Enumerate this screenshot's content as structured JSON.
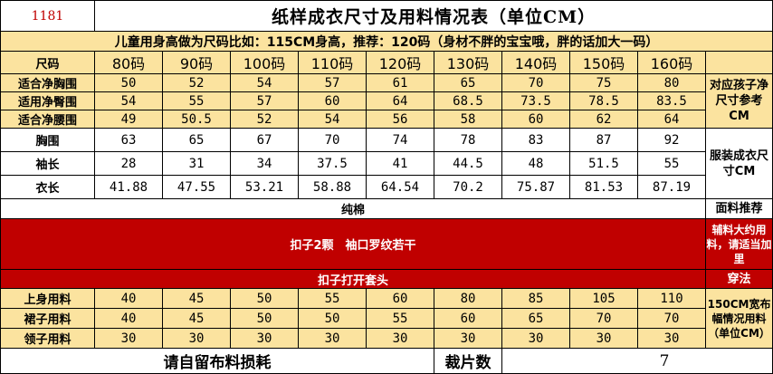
{
  "header": {
    "code": "1181",
    "title": "纸样成衣尺寸及用料情况表（单位CM）",
    "note": "儿童用身高做为尺码比如：115CM身高，推荐：120码（身材不胖的宝宝哦，胖的话加大一码）"
  },
  "columns": {
    "label": "尺码",
    "sizes": [
      "80码",
      "90码",
      "100码",
      "110码",
      "120码",
      "130码",
      "140码",
      "150码",
      "160码"
    ]
  },
  "child_rows": [
    {
      "label": "适合净胸围",
      "values": [
        "50",
        "52",
        "54",
        "57",
        "61",
        "65",
        "70",
        "75",
        "80"
      ]
    },
    {
      "label": "适用净臀围",
      "values": [
        "54",
        "55",
        "57",
        "60",
        "64",
        "68.5",
        "73.5",
        "78.5",
        "83.5"
      ]
    },
    {
      "label": "适合净腰围",
      "values": [
        "49",
        "50.5",
        "52",
        "54",
        "56",
        "58",
        "60",
        "62",
        "64"
      ]
    }
  ],
  "child_side": "对应孩子净尺寸参考CM",
  "garment_rows": [
    {
      "label": "胸围",
      "values": [
        "63",
        "65",
        "67",
        "70",
        "74",
        "78",
        "83",
        "87",
        "92"
      ]
    },
    {
      "label": "袖长",
      "values": [
        "28",
        "31",
        "34",
        "37.5",
        "41",
        "44.5",
        "48",
        "51.5",
        "55"
      ]
    },
    {
      "label": "衣长",
      "values": [
        "41.88",
        "47.55",
        "53.21",
        "58.88",
        "64.54",
        "70.2",
        "75.87",
        "81.53",
        "87.19"
      ]
    }
  ],
  "garment_side": "服装成衣尺寸CM",
  "fabric": {
    "text": "纯棉",
    "side": "面料推荐"
  },
  "accessories": {
    "text": "扣子2颗　袖口罗纹若干",
    "side": "辅料大约用料，请适当加里"
  },
  "method": {
    "text": "扣子打开套头",
    "side": "穿法"
  },
  "usage_rows": [
    {
      "label": "上身用料",
      "values": [
        "40",
        "45",
        "50",
        "55",
        "60",
        "80",
        "85",
        "105",
        "110"
      ]
    },
    {
      "label": "裙子用料",
      "values": [
        "40",
        "45",
        "50",
        "50",
        "55",
        "60",
        "65",
        "70",
        "70"
      ]
    },
    {
      "label": "领子用料",
      "values": [
        "30",
        "30",
        "30",
        "30",
        "30",
        "30",
        "30",
        "30",
        "30"
      ]
    }
  ],
  "usage_side": "150CM宽布幅情况用料（单位CM）",
  "footer": {
    "note": "请自留布料损耗",
    "pieces_label": "裁片数",
    "pieces_value": "7"
  }
}
